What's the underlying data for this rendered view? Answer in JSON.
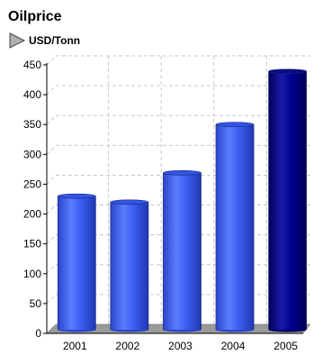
{
  "chart_data": {
    "type": "bar",
    "title": "Oilprice",
    "series": [
      {
        "name": "USD/Tonn",
        "values": [
          221,
          211,
          260,
          341,
          430
        ]
      }
    ],
    "categories": [
      "2001",
      "2002",
      "2003",
      "2004",
      "2005"
    ],
    "ylim": [
      0,
      450
    ],
    "yticks": [
      0,
      50,
      100,
      150,
      200,
      250,
      300,
      350,
      400,
      450
    ],
    "grid": true,
    "legend": "top-left",
    "colors": {
      "bar": "#3b5ff2",
      "bar_highlight": "#000080",
      "grid": "#c8c8c8",
      "floor": "#9a9a9a"
    }
  }
}
